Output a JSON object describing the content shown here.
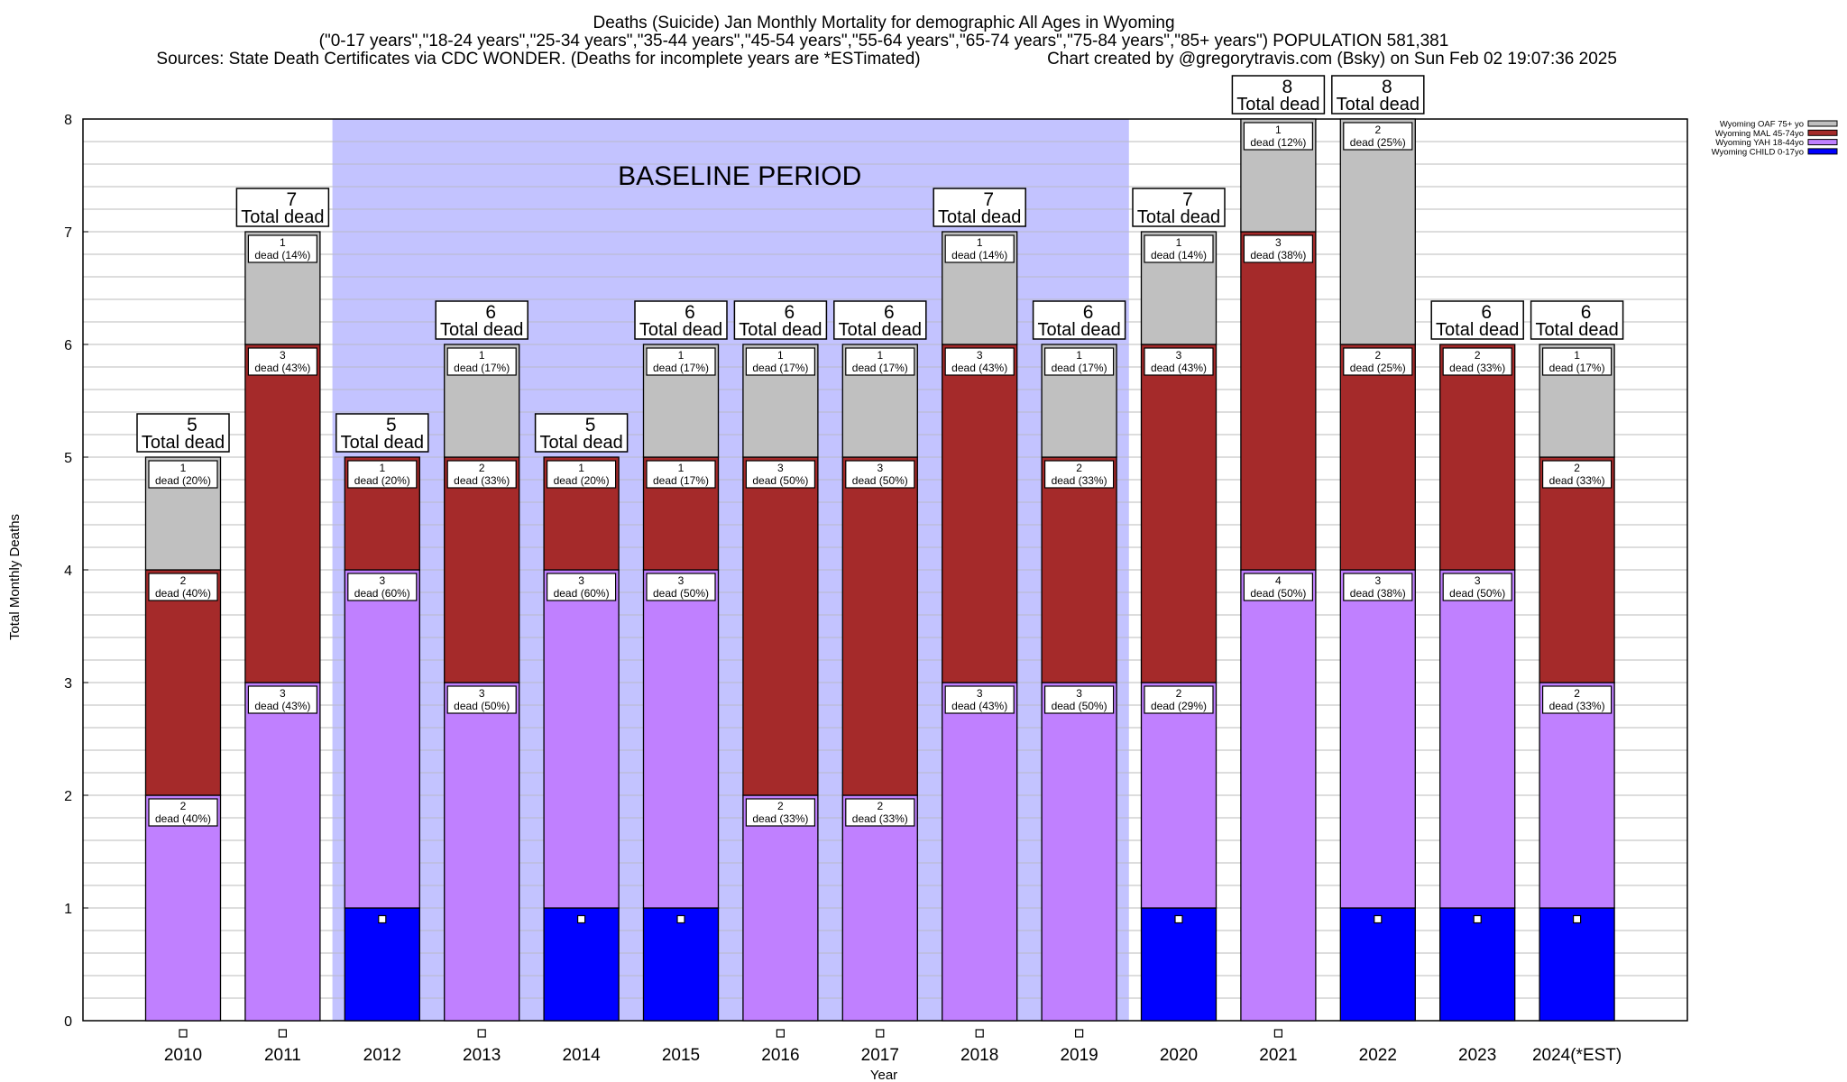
{
  "title": {
    "line1": "Deaths (Suicide) Jan Monthly Mortality for demographic All Ages in Wyoming",
    "line2": "(\"0-17 years\",\"18-24 years\",\"25-34 years\",\"35-44 years\",\"45-54 years\",\"55-64 years\",\"65-74 years\",\"75-84 years\",\"85+ years\") POPULATION 581,381",
    "line3_left": "Sources: State Death Certificates via CDC WONDER. (Deaths for incomplete years are *ESTimated)",
    "line3_right": "Chart created by @gregorytravis.com (Bsky) on Sun Feb 02 19:07:36 2025"
  },
  "chart_data": {
    "type": "bar",
    "stacked": true,
    "xlabel": "Year",
    "ylabel": "Total Monthly Deaths",
    "ylim": [
      0,
      8
    ],
    "yticks": [
      "0",
      "1",
      "2",
      "3",
      "4",
      "5",
      "6",
      "7",
      "8"
    ],
    "grid": true,
    "legend_position": "top-right",
    "annotation": "BASELINE PERIOD",
    "baseline_range": [
      "2012",
      "2019"
    ],
    "total_label": "Total dead",
    "dead_word": "dead",
    "categories": [
      "2010",
      "2011",
      "2012",
      "2013",
      "2014",
      "2015",
      "2016",
      "2017",
      "2018",
      "2019",
      "2020",
      "2021",
      "2022",
      "2023",
      "2024(*EST)"
    ],
    "totals": [
      5,
      7,
      5,
      6,
      5,
      6,
      6,
      6,
      7,
      6,
      7,
      8,
      8,
      6,
      6
    ],
    "series": [
      {
        "name": "Wyoming CHILD 0-17yo",
        "color": "#0000ff",
        "values": [
          0,
          0,
          1,
          0,
          1,
          1,
          0,
          0,
          0,
          0,
          1,
          0,
          1,
          1,
          1
        ],
        "pct": [
          "",
          "",
          "",
          "",
          "",
          "",
          "",
          "",
          "",
          "",
          "",
          "",
          "",
          "",
          ""
        ]
      },
      {
        "name": "Wyoming YAH 18-44yo",
        "color": "#c080ff",
        "values": [
          2,
          3,
          3,
          3,
          3,
          3,
          2,
          2,
          3,
          3,
          2,
          4,
          3,
          3,
          2
        ],
        "pct": [
          "40%",
          "43%",
          "60%",
          "50%",
          "60%",
          "50%",
          "33%",
          "33%",
          "43%",
          "50%",
          "29%",
          "50%",
          "38%",
          "50%",
          "33%"
        ]
      },
      {
        "name": "Wyoming MAL 45-74yo",
        "color": "#a52a2a",
        "values": [
          2,
          3,
          1,
          2,
          1,
          1,
          3,
          3,
          3,
          2,
          3,
          3,
          2,
          2,
          2
        ],
        "pct": [
          "40%",
          "43%",
          "20%",
          "33%",
          "20%",
          "17%",
          "50%",
          "50%",
          "43%",
          "33%",
          "43%",
          "38%",
          "25%",
          "33%",
          "33%"
        ]
      },
      {
        "name": "Wyoming OAF 75+ yo",
        "color": "#c0c0c0",
        "values": [
          1,
          1,
          0,
          1,
          0,
          1,
          1,
          1,
          1,
          1,
          1,
          1,
          2,
          0,
          1
        ],
        "pct": [
          "20%",
          "14%",
          "",
          "17%",
          "",
          "17%",
          "17%",
          "17%",
          "14%",
          "17%",
          "14%",
          "12%",
          "25%",
          "",
          "17%"
        ]
      }
    ],
    "baseline_color": "#c0c0ff"
  }
}
